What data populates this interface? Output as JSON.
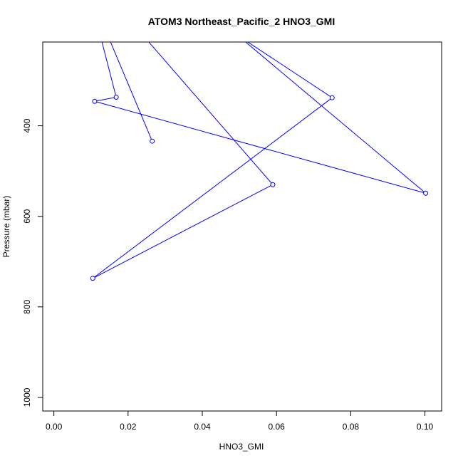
{
  "chart_data": {
    "type": "line",
    "title": "ATOM3 Northeast_Pacific_2 HNO3_GMI",
    "xlabel": "HNO3_GMI",
    "ylabel": "Pressure (mbar)",
    "xlim": [
      -0.003,
      0.1045
    ],
    "ylim": [
      1030,
      215
    ],
    "y_reversed": true,
    "x_ticks": [
      0.0,
      0.02,
      0.04,
      0.06,
      0.08,
      0.1
    ],
    "x_tick_labels": [
      "0.00",
      "0.02",
      "0.04",
      "0.06",
      "0.08",
      "0.10"
    ],
    "y_ticks": [
      400,
      600,
      800,
      1000
    ],
    "y_tick_labels": [
      "400",
      "600",
      "800",
      "1000"
    ],
    "series_color": "#0000ff",
    "series": [
      {
        "x": [
          0.0265,
          0.0145,
          0.0125,
          0.0168,
          0.011,
          0.1002,
          0.0495,
          0.075,
          0.0105,
          0.059,
          0.024
        ],
        "y": [
          434,
          200,
          200,
          337,
          346,
          549,
          200,
          338,
          737,
          530,
          200
        ],
        "marker": [
          true,
          false,
          false,
          true,
          true,
          true,
          false,
          true,
          true,
          true,
          false
        ]
      }
    ]
  }
}
